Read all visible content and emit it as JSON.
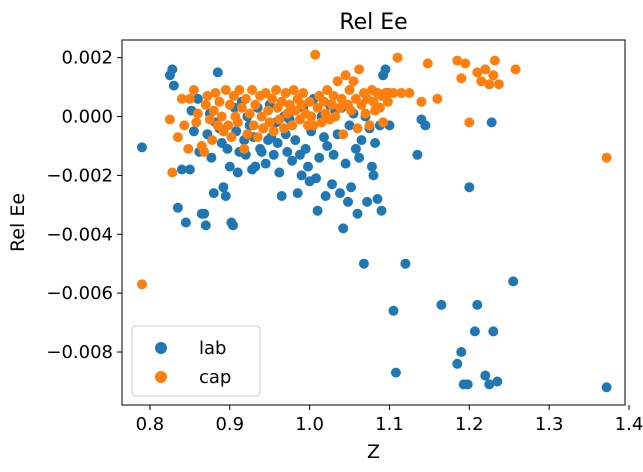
{
  "chart_data": {
    "type": "scatter",
    "title": "Rel Ee",
    "xlabel": "Z",
    "ylabel": "Rel Ee",
    "xlim": [
      0.765,
      1.395
    ],
    "ylim": [
      -0.0098,
      0.0026
    ],
    "xticks": [
      0.8,
      0.9,
      1.0,
      1.1,
      1.2,
      1.3,
      1.4
    ],
    "xtick_labels": [
      "0.8",
      "0.9",
      "1.0",
      "1.1",
      "1.2",
      "1.3",
      "1.4"
    ],
    "yticks": [
      0.002,
      0.0,
      -0.002,
      -0.004,
      -0.006,
      -0.008
    ],
    "ytick_labels": [
      "0.002",
      "0.000",
      "−0.002",
      "−0.004",
      "−0.006",
      "−0.008"
    ],
    "grid": false,
    "legend_position": "bottom-left",
    "series": [
      {
        "name": "lab",
        "color": "#1f77b4",
        "points": [
          [
            0.79,
            -0.00105
          ],
          [
            0.825,
            0.0014
          ],
          [
            0.828,
            0.0016
          ],
          [
            0.83,
            0.00105
          ],
          [
            0.835,
            -0.0031
          ],
          [
            0.84,
            -0.0018
          ],
          [
            0.845,
            -0.0036
          ],
          [
            0.85,
            -0.0018
          ],
          [
            0.852,
            0.0002
          ],
          [
            0.855,
            -0.0005
          ],
          [
            0.86,
            0.0006
          ],
          [
            0.862,
            -0.0012
          ],
          [
            0.865,
            -0.0033
          ],
          [
            0.868,
            -0.0033
          ],
          [
            0.87,
            -0.0037
          ],
          [
            0.872,
            -0.0006
          ],
          [
            0.875,
            0.0001
          ],
          [
            0.877,
            -0.0014
          ],
          [
            0.88,
            -0.0026
          ],
          [
            0.882,
            -0.0002
          ],
          [
            0.885,
            0.0015
          ],
          [
            0.887,
            -0.0004
          ],
          [
            0.89,
            -0.0009
          ],
          [
            0.892,
            -0.0024
          ],
          [
            0.895,
            -0.0027
          ],
          [
            0.897,
            -0.0011
          ],
          [
            0.9,
            -0.0017
          ],
          [
            0.902,
            -0.0036
          ],
          [
            0.904,
            -0.0037
          ],
          [
            0.906,
            0.0003
          ],
          [
            0.908,
            -0.0005
          ],
          [
            0.91,
            -0.0019
          ],
          [
            0.912,
            -0.0012
          ],
          [
            0.915,
            0.0005
          ],
          [
            0.918,
            -0.0008
          ],
          [
            0.92,
            -0.0013
          ],
          [
            0.922,
            0.0
          ],
          [
            0.925,
            -0.0003
          ],
          [
            0.928,
            -0.0018
          ],
          [
            0.93,
            -0.0007
          ],
          [
            0.932,
            -0.0017
          ],
          [
            0.935,
            0.0003
          ],
          [
            0.938,
            -0.0011
          ],
          [
            0.94,
            -0.0012
          ],
          [
            0.942,
            -0.0004
          ],
          [
            0.945,
            -0.0016
          ],
          [
            0.948,
            -0.0008
          ],
          [
            0.95,
            0.0004
          ],
          [
            0.952,
            -0.0007
          ],
          [
            0.955,
            -0.0013
          ],
          [
            0.958,
            -0.0002
          ],
          [
            0.96,
            -0.0009
          ],
          [
            0.962,
            -0.0019
          ],
          [
            0.965,
            -0.0027
          ],
          [
            0.968,
            0.0
          ],
          [
            0.97,
            -0.0006
          ],
          [
            0.972,
            -0.0012
          ],
          [
            0.975,
            -0.0001
          ],
          [
            0.978,
            -0.0015
          ],
          [
            0.98,
            0.0002
          ],
          [
            0.982,
            -0.0008
          ],
          [
            0.985,
            -0.0026
          ],
          [
            0.988,
            -0.0013
          ],
          [
            0.99,
            -0.002
          ],
          [
            0.992,
            0.0003
          ],
          [
            0.995,
            -0.0011
          ],
          [
            0.998,
            -0.0017
          ],
          [
            1.0,
            -0.0022
          ],
          [
            1.002,
            -0.0005
          ],
          [
            1.005,
            0.0006
          ],
          [
            1.008,
            -0.0021
          ],
          [
            1.01,
            -0.0032
          ],
          [
            1.012,
            -0.0014
          ],
          [
            1.015,
            0.0
          ],
          [
            1.018,
            -0.0007
          ],
          [
            1.02,
            -0.0027
          ],
          [
            1.022,
            -0.001
          ],
          [
            1.025,
            0.0004
          ],
          [
            1.028,
            -0.0023
          ],
          [
            1.03,
            -0.0013
          ],
          [
            1.032,
            0.0002
          ],
          [
            1.035,
            -0.0006
          ],
          [
            1.038,
            -0.0026
          ],
          [
            1.04,
            0.0003
          ],
          [
            1.042,
            -0.0038
          ],
          [
            1.045,
            -0.0016
          ],
          [
            1.048,
            -0.0029
          ],
          [
            1.05,
            -0.0003
          ],
          [
            1.052,
            -0.0024
          ],
          [
            1.055,
            0.0001
          ],
          [
            1.058,
            -0.0011
          ],
          [
            1.06,
            -0.0033
          ],
          [
            1.062,
            -0.0014
          ],
          [
            1.065,
            -0.0008
          ],
          [
            1.068,
            -0.005
          ],
          [
            1.07,
            0.0
          ],
          [
            1.072,
            -0.0029
          ],
          [
            1.075,
            -0.0004
          ],
          [
            1.078,
            -0.0017
          ],
          [
            1.08,
            -0.002
          ],
          [
            1.082,
            -0.0009
          ],
          [
            1.085,
            -0.0028
          ],
          [
            1.088,
            -0.0003
          ],
          [
            1.09,
            -0.0032
          ],
          [
            1.092,
            0.0014
          ],
          [
            1.095,
            0.0016
          ],
          [
            1.098,
            0.0008
          ],
          [
            1.1,
            -0.0003
          ],
          [
            1.105,
            -0.0066
          ],
          [
            1.108,
            -0.0087
          ],
          [
            1.12,
            -0.005
          ],
          [
            1.135,
            -0.0013
          ],
          [
            1.14,
            -0.0001
          ],
          [
            1.145,
            -0.0003
          ],
          [
            1.165,
            -0.0064
          ],
          [
            1.185,
            -0.0084
          ],
          [
            1.19,
            -0.008
          ],
          [
            1.193,
            -0.0091
          ],
          [
            1.198,
            -0.0091
          ],
          [
            1.2,
            -0.0024
          ],
          [
            1.207,
            -0.0073
          ],
          [
            1.21,
            -0.0064
          ],
          [
            1.22,
            -0.0088
          ],
          [
            1.225,
            -0.0091
          ],
          [
            1.228,
            -0.0002
          ],
          [
            1.23,
            -0.0073
          ],
          [
            1.235,
            -0.009
          ],
          [
            1.255,
            -0.0056
          ],
          [
            1.372,
            -0.0092
          ]
        ]
      },
      {
        "name": "cap",
        "color": "#ff7f0e",
        "points": [
          [
            0.79,
            -0.0057
          ],
          [
            0.825,
            -0.0001
          ],
          [
            0.828,
            -0.0019
          ],
          [
            0.835,
            -0.0007
          ],
          [
            0.84,
            0.0006
          ],
          [
            0.843,
            -0.0003
          ],
          [
            0.848,
            -0.0011
          ],
          [
            0.85,
            0.0006
          ],
          [
            0.855,
            0.0009
          ],
          [
            0.858,
            -0.0002
          ],
          [
            0.86,
            0.0001
          ],
          [
            0.865,
            -0.001
          ],
          [
            0.868,
            -0.0012
          ],
          [
            0.87,
            0.0004
          ],
          [
            0.872,
            0.0007
          ],
          [
            0.875,
            -0.0001
          ],
          [
            0.878,
            -0.0008
          ],
          [
            0.88,
            0.0002
          ],
          [
            0.882,
            0.0008
          ],
          [
            0.885,
            -0.0003
          ],
          [
            0.887,
            0.0005
          ],
          [
            0.89,
            0.0
          ],
          [
            0.892,
            -0.0005
          ],
          [
            0.895,
            0.0009
          ],
          [
            0.898,
            -0.0003
          ],
          [
            0.9,
            0.0004
          ],
          [
            0.902,
            -0.0007
          ],
          [
            0.905,
            0.0007
          ],
          [
            0.907,
            0.0
          ],
          [
            0.91,
            -0.0002
          ],
          [
            0.912,
            0.0009
          ],
          [
            0.915,
            0.0003
          ],
          [
            0.918,
            -0.0011
          ],
          [
            0.92,
            0.0006
          ],
          [
            0.922,
            -0.0006
          ],
          [
            0.925,
            0.0001
          ],
          [
            0.928,
            0.0009
          ],
          [
            0.93,
            -0.0003
          ],
          [
            0.932,
            0.0004
          ],
          [
            0.935,
            -0.0007
          ],
          [
            0.938,
            0.0007
          ],
          [
            0.94,
            0.0
          ],
          [
            0.942,
            -0.0004
          ],
          [
            0.945,
            0.0008
          ],
          [
            0.948,
            0.0002
          ],
          [
            0.95,
            -0.0002
          ],
          [
            0.953,
            0.0006
          ],
          [
            0.955,
            -0.0005
          ],
          [
            0.958,
            0.0009
          ],
          [
            0.96,
            0.0003
          ],
          [
            0.962,
            -0.0001
          ],
          [
            0.965,
            0.0005
          ],
          [
            0.968,
            -0.0004
          ],
          [
            0.97,
            0.0008
          ],
          [
            0.972,
            0.0001
          ],
          [
            0.975,
            0.0004
          ],
          [
            0.978,
            -0.0003
          ],
          [
            0.98,
            0.0009
          ],
          [
            0.982,
            0.0002
          ],
          [
            0.985,
            0.0006
          ],
          [
            0.988,
            -0.0001
          ],
          [
            0.99,
            0.0004
          ],
          [
            0.992,
            0.0008
          ],
          [
            0.995,
            0.0001
          ],
          [
            0.998,
            -0.0003
          ],
          [
            1.0,
            0.0005
          ],
          [
            1.002,
            0.0
          ],
          [
            1.005,
            -0.0003
          ],
          [
            1.007,
            0.0021
          ],
          [
            1.01,
            0.0003
          ],
          [
            1.012,
            0.0007
          ],
          [
            1.015,
            -0.0002
          ],
          [
            1.018,
            0.0005
          ],
          [
            1.02,
            0.0001
          ],
          [
            1.022,
            0.0009
          ],
          [
            1.025,
            -0.0001
          ],
          [
            1.028,
            0.0004
          ],
          [
            1.03,
            0.0007
          ],
          [
            1.032,
            0.0
          ],
          [
            1.035,
            0.0012
          ],
          [
            1.038,
            0.0003
          ],
          [
            1.04,
            0.0006
          ],
          [
            1.042,
            -0.0006
          ],
          [
            1.045,
            0.0014
          ],
          [
            1.048,
            0.0004
          ],
          [
            1.05,
            0.0009
          ],
          [
            1.052,
            0.0002
          ],
          [
            1.055,
            0.0012
          ],
          [
            1.058,
            0.0006
          ],
          [
            1.06,
            -0.0004
          ],
          [
            1.062,
            0.0016
          ],
          [
            1.065,
            0.0004
          ],
          [
            1.068,
            0.0008
          ],
          [
            1.07,
            0.0001
          ],
          [
            1.072,
            0.0006
          ],
          [
            1.075,
            -0.0003
          ],
          [
            1.078,
            0.0009
          ],
          [
            1.08,
            0.0005
          ],
          [
            1.082,
            0.0002
          ],
          [
            1.085,
            0.0008
          ],
          [
            1.088,
            0.0003
          ],
          [
            1.09,
            0.0007
          ],
          [
            1.092,
            -0.0002
          ],
          [
            1.095,
            0.0008
          ],
          [
            1.098,
            0.0005
          ],
          [
            1.1,
            0.0008
          ],
          [
            1.105,
            0.0008
          ],
          [
            1.11,
            0.002
          ],
          [
            1.115,
            0.0008
          ],
          [
            1.125,
            0.0008
          ],
          [
            1.14,
            0.0005
          ],
          [
            1.148,
            0.0018
          ],
          [
            1.16,
            0.0006
          ],
          [
            1.185,
            0.0019
          ],
          [
            1.19,
            0.0013
          ],
          [
            1.195,
            0.0018
          ],
          [
            1.2,
            -0.0002
          ],
          [
            1.21,
            0.0015
          ],
          [
            1.215,
            0.0012
          ],
          [
            1.22,
            0.0016
          ],
          [
            1.225,
            0.0011
          ],
          [
            1.23,
            0.0014
          ],
          [
            1.232,
            0.0019
          ],
          [
            1.237,
            0.0011
          ],
          [
            1.258,
            0.0016
          ],
          [
            1.372,
            -0.0014
          ]
        ]
      }
    ]
  }
}
